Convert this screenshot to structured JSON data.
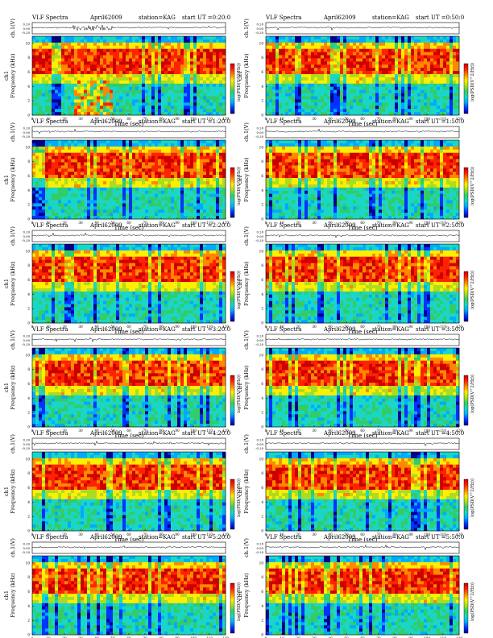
{
  "common": {
    "prefix": "VLF Spectra",
    "date": "April62009",
    "station": "station=KAG",
    "trace_ylabel": "ch.1(V)",
    "spec_ylabel_ch": "ch1",
    "spec_ylabel": "Frequency (kHz)",
    "xlabel": "Time (sec)",
    "cbar_label": "log(PSD(V^2/Hz))"
  },
  "chart_data": [
    {
      "type": "heatmap",
      "start_ut": "start UT =0:20:0",
      "x_ticks": [
        "0",
        "10",
        "20",
        "30",
        "40",
        "50",
        "60",
        "70",
        "80",
        "90",
        "100",
        "110",
        "120"
      ],
      "y_ticks": [
        "0",
        "2",
        "4",
        "6",
        "8",
        "10"
      ],
      "trace_ticks": [
        "0.20",
        "0.00",
        "-0.20"
      ],
      "xlim": [
        0,
        120
      ],
      "ylim_khz": [
        0,
        11
      ],
      "artifact": "broad-band burst 25-50 s"
    },
    {
      "type": "heatmap",
      "start_ut": "start UT =0:50:0",
      "x_ticks": [
        "0",
        "10",
        "20",
        "30",
        "40",
        "50",
        "60",
        "70",
        "80",
        "90",
        "100",
        "110",
        "120"
      ],
      "y_ticks": [
        "0",
        "2",
        "4",
        "6",
        "8",
        "10"
      ],
      "trace_ticks": [
        "0.20",
        "0.00",
        "-0.20"
      ],
      "xlim": [
        0,
        120
      ],
      "ylim_khz": [
        0,
        11
      ]
    },
    {
      "type": "heatmap",
      "start_ut": "start UT =1:20:0",
      "x_ticks": [
        "0",
        "10",
        "20",
        "30",
        "40",
        "50",
        "60",
        "70",
        "80",
        "90",
        "100",
        "110",
        "120"
      ],
      "y_ticks": [
        "0",
        "2",
        "4",
        "6",
        "8",
        "10"
      ],
      "trace_ticks": [
        "0.20",
        "0.00",
        "-0.20"
      ],
      "xlim": [
        0,
        120
      ],
      "ylim_khz": [
        0,
        11
      ]
    },
    {
      "type": "heatmap",
      "start_ut": "start UT =1:50:0",
      "x_ticks": [
        "0",
        "10",
        "20",
        "30",
        "40",
        "50",
        "60",
        "70",
        "80",
        "90",
        "100",
        "110",
        "120"
      ],
      "y_ticks": [
        "0",
        "2",
        "4",
        "6",
        "8",
        "10"
      ],
      "trace_ticks": [
        "0.20",
        "0.00",
        "-0.20"
      ],
      "xlim": [
        0,
        120
      ],
      "ylim_khz": [
        0,
        11
      ]
    },
    {
      "type": "heatmap",
      "start_ut": "start UT =2:20:0",
      "x_ticks": [
        "0",
        "10",
        "20",
        "30",
        "40",
        "50",
        "60",
        "70",
        "80",
        "90",
        "100",
        "110",
        "120"
      ],
      "y_ticks": [
        "0",
        "2",
        "4",
        "6",
        "8",
        "10"
      ],
      "trace_ticks": [
        "0.20",
        "0.00",
        "-0.20"
      ],
      "xlim": [
        0,
        120
      ],
      "ylim_khz": [
        0,
        11
      ]
    },
    {
      "type": "heatmap",
      "start_ut": "start UT =2:50:0",
      "x_ticks": [
        "0",
        "10",
        "20",
        "30",
        "40",
        "50",
        "60",
        "70",
        "80",
        "90",
        "100",
        "110",
        "120"
      ],
      "y_ticks": [
        "0",
        "2",
        "4",
        "6",
        "8",
        "10"
      ],
      "trace_ticks": [
        "0.20",
        "0.00",
        "-0.20"
      ],
      "xlim": [
        0,
        120
      ],
      "ylim_khz": [
        0,
        11
      ]
    },
    {
      "type": "heatmap",
      "start_ut": "start UT =3:20:0",
      "x_ticks": [
        "0",
        "10",
        "20",
        "30",
        "40",
        "50",
        "60",
        "70",
        "80",
        "90",
        "100",
        "110",
        "120"
      ],
      "y_ticks": [
        "0",
        "2",
        "4",
        "6",
        "8",
        "10"
      ],
      "trace_ticks": [
        "0.20",
        "0.00",
        "-0.20"
      ],
      "xlim": [
        0,
        120
      ],
      "ylim_khz": [
        0,
        11
      ]
    },
    {
      "type": "heatmap",
      "start_ut": "start UT =3:50:0",
      "x_ticks": [
        "0",
        "10",
        "20",
        "30",
        "40",
        "50",
        "60",
        "70",
        "80",
        "90",
        "100",
        "110",
        "120"
      ],
      "y_ticks": [
        "0",
        "2",
        "4",
        "6",
        "8",
        "10"
      ],
      "trace_ticks": [
        "0.20",
        "0.00",
        "-0.20"
      ],
      "xlim": [
        0,
        120
      ],
      "ylim_khz": [
        0,
        11
      ]
    },
    {
      "type": "heatmap",
      "start_ut": "start UT =4:20:0",
      "x_ticks": [
        "0",
        "10",
        "20",
        "30",
        "40",
        "50",
        "60",
        "70",
        "80",
        "90",
        "100",
        "110",
        "120"
      ],
      "y_ticks": [
        "0",
        "2",
        "4",
        "6",
        "8",
        "10"
      ],
      "trace_ticks": [
        "0.20",
        "0.00",
        "-0.20"
      ],
      "xlim": [
        0,
        120
      ],
      "ylim_khz": [
        0,
        11
      ]
    },
    {
      "type": "heatmap",
      "start_ut": "start UT =4:50:0",
      "x_ticks": [
        "0",
        "10",
        "20",
        "30",
        "40",
        "50",
        "60",
        "70",
        "80",
        "90",
        "100",
        "110",
        "120"
      ],
      "y_ticks": [
        "0",
        "2",
        "4",
        "6",
        "8",
        "10"
      ],
      "trace_ticks": [
        "0.20",
        "0.00",
        "-0.20"
      ],
      "xlim": [
        0,
        120
      ],
      "ylim_khz": [
        0,
        11
      ]
    },
    {
      "type": "heatmap",
      "start_ut": "start UT =5:20:0",
      "x_ticks": [
        "0",
        "10",
        "20",
        "30",
        "40",
        "50",
        "60",
        "70",
        "80",
        "90",
        "100",
        "110",
        "120"
      ],
      "y_ticks": [
        "0",
        "2",
        "4",
        "6",
        "8",
        "10"
      ],
      "trace_ticks": [
        "0.20",
        "0.00",
        "-0.20"
      ],
      "xlim": [
        0,
        120
      ],
      "ylim_khz": [
        0,
        11
      ]
    },
    {
      "type": "heatmap",
      "start_ut": "start UT =5:50:0",
      "x_ticks": [
        "0",
        "10",
        "20",
        "30",
        "40",
        "50",
        "60",
        "70",
        "80",
        "90",
        "100",
        "110",
        "120"
      ],
      "y_ticks": [
        "0",
        "2",
        "4",
        "6",
        "8",
        "10"
      ],
      "trace_ticks": [
        "0.20",
        "0.00",
        "-0.20"
      ],
      "xlim": [
        0,
        120
      ],
      "ylim_khz": [
        0,
        11
      ]
    }
  ],
  "colors": {
    "scale": [
      "#00008b",
      "#0033ff",
      "#00aaff",
      "#19d6c6",
      "#33cc66",
      "#aadd22",
      "#ffee00",
      "#ff8800",
      "#ff2200",
      "#cc0000"
    ]
  }
}
